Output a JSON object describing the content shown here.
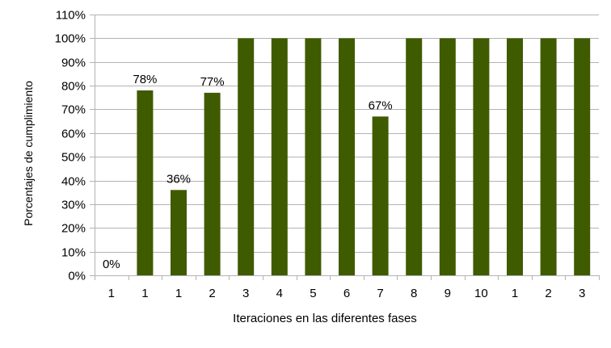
{
  "chart_data": {
    "type": "bar",
    "title": "",
    "xlabel": "Iteraciones en las diferentes fases",
    "ylabel": "Porcentajes de cumplimiento",
    "categories": [
      "1",
      "1",
      "1",
      "2",
      "3",
      "4",
      "5",
      "6",
      "7",
      "8",
      "9",
      "10",
      "1",
      "2",
      "3"
    ],
    "values": [
      0,
      78,
      36,
      77,
      100,
      100,
      100,
      100,
      67,
      100,
      100,
      100,
      100,
      100,
      100
    ],
    "data_labels": [
      "0%",
      "78%",
      "36%",
      "77%",
      "",
      "",
      "",
      "",
      "67%",
      "",
      "",
      "",
      "",
      "",
      ""
    ],
    "ylim": [
      0,
      110
    ],
    "yticks": [
      0,
      10,
      20,
      30,
      40,
      50,
      60,
      70,
      80,
      90,
      100,
      110
    ],
    "ytick_labels": [
      "0%",
      "10%",
      "20%",
      "30%",
      "40%",
      "50%",
      "60%",
      "70%",
      "80%",
      "90%",
      "100%",
      "110%"
    ],
    "bar_color": "#3f5b00",
    "grid_color": "#b3b3b3",
    "grid": true,
    "legend": "none"
  }
}
